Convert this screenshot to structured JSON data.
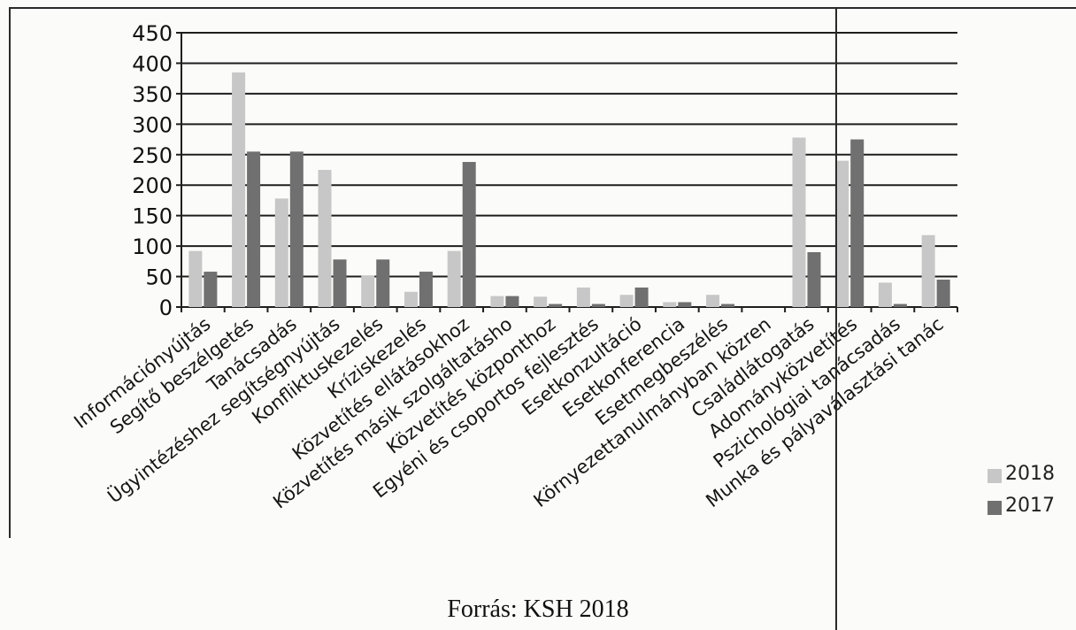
{
  "chart_data": {
    "type": "bar",
    "title": "",
    "xlabel": "",
    "ylabel": "",
    "ylim": [
      0,
      450
    ],
    "yticks": [
      0,
      50,
      100,
      150,
      200,
      250,
      300,
      350,
      400,
      450
    ],
    "grid": true,
    "legend_position": "right",
    "categories": [
      "Információnyújtás",
      "Segítő beszélgetés",
      "Tanácsadás",
      "Ügyintézéshez segítségnyújtás",
      "Konfliktuskezelés",
      "Kríziskezelés",
      "Közvetítés ellátásokhoz",
      "Közvetítés másik szolgáltatásho",
      "Közvetítés központhoz",
      "Egyéni és csoportos fejlesztés",
      "Esetkonzultáció",
      "Esetkonferencia",
      "Esetmegbeszélés",
      "Környezettanulmányban közren",
      "Családlátogatás",
      "Adományközvetítés",
      "Pszichológiai tanácsadás",
      "Munka és pályaválasztási tanác"
    ],
    "series": [
      {
        "name": "2018",
        "color": "#c7c7c7",
        "values": [
          92,
          385,
          178,
          225,
          52,
          25,
          92,
          18,
          17,
          32,
          20,
          8,
          20,
          0,
          278,
          240,
          40,
          118
        ]
      },
      {
        "name": "2017",
        "color": "#707070",
        "values": [
          58,
          255,
          255,
          78,
          78,
          58,
          238,
          18,
          5,
          5,
          32,
          8,
          5,
          0,
          90,
          275,
          5,
          45
        ]
      }
    ]
  },
  "source_note": "Forrás: KSH 2018"
}
